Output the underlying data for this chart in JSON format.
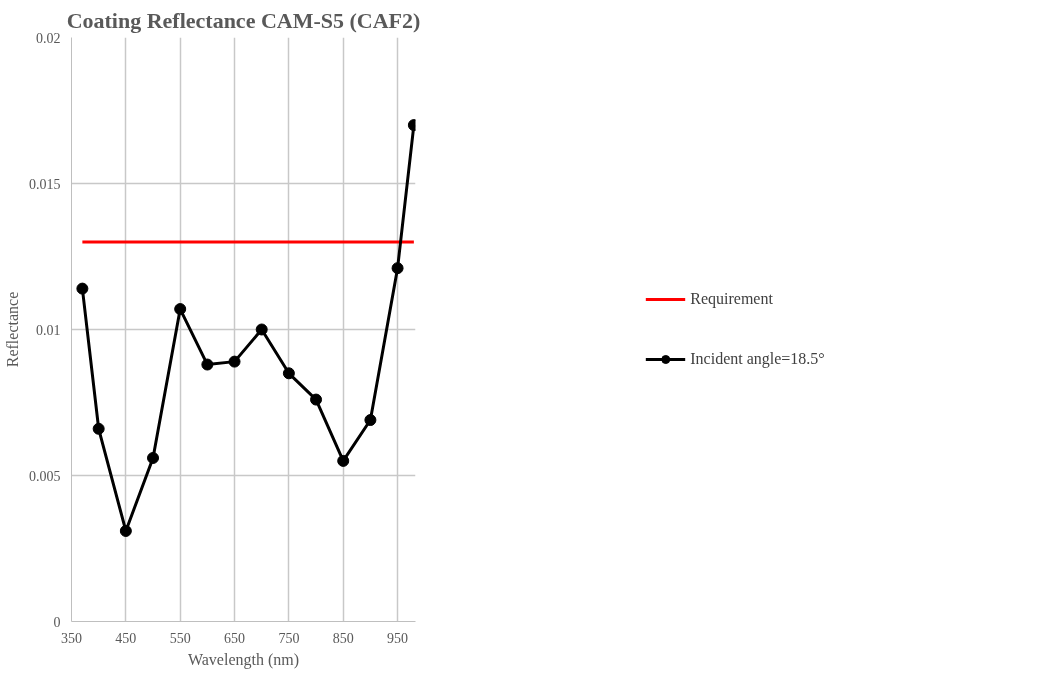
{
  "chart_data": {
    "type": "line",
    "title": "Coating Reflectance CAM-S5 (CAF2)",
    "xlabel": "Wavelength (nm)",
    "ylabel": "Reflectance",
    "xlim": [
      350,
      983
    ],
    "xticks": [
      350,
      450,
      550,
      650,
      750,
      850,
      950
    ],
    "ylim": [
      0,
      0.02
    ],
    "yticks": [
      0,
      0.005,
      0.01,
      0.015,
      0.02
    ],
    "grid": true,
    "legend": "right",
    "series": [
      {
        "name": "Requirement",
        "color": "#ff0000",
        "marker": "none",
        "x": [
          370,
          980
        ],
        "values": [
          0.013,
          0.013
        ]
      },
      {
        "name": "Incident angle=18.5°",
        "color": "#000000",
        "marker": "circle",
        "x": [
          370,
          400,
          450,
          500,
          550,
          600,
          650,
          700,
          750,
          800,
          850,
          900,
          950,
          980
        ],
        "values": [
          0.0114,
          0.0066,
          0.0031,
          0.0056,
          0.0107,
          0.0088,
          0.0089,
          0.01,
          0.0085,
          0.0076,
          0.0055,
          0.0069,
          0.0121,
          0.017
        ]
      }
    ]
  }
}
